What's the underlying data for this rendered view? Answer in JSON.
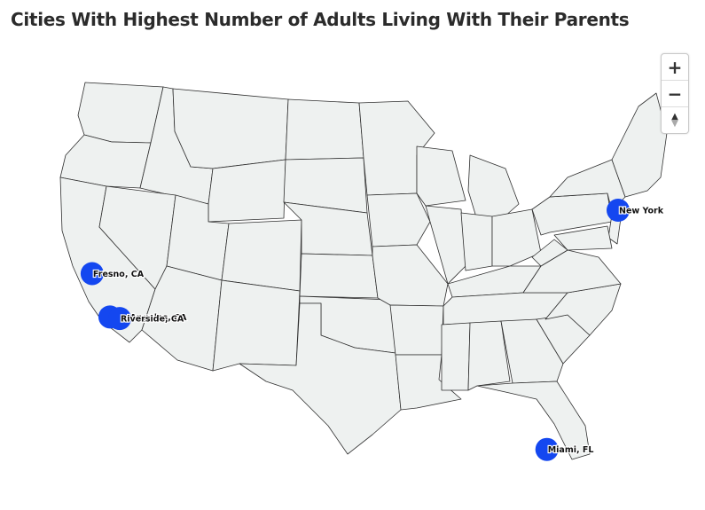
{
  "title": "Cities With Highest Number of Adults Living With Their Parents",
  "markers": [
    {
      "label": "New York",
      "lon": -74.0,
      "lat": 40.7
    },
    {
      "label": "Fresno, CA",
      "lon": -119.8,
      "lat": 36.75
    },
    {
      "label": "Los Angeles, CA",
      "lon": -118.25,
      "lat": 34.05
    },
    {
      "label": "Riverside, CA",
      "lon": -117.4,
      "lat": 33.95
    },
    {
      "label": "Miami, FL",
      "lon": -80.2,
      "lat": 25.8
    }
  ],
  "colors": {
    "marker": "#1447f0",
    "land": "#eef1f0",
    "border": "#2f2f2f"
  },
  "controls": {
    "zoom_in": "+",
    "zoom_out": "−",
    "reset_north": "▲",
    "reset_south": "▼"
  },
  "icons": {
    "zoom_in": "plus-icon",
    "zoom_out": "minus-icon",
    "reset": "compass-icon"
  }
}
